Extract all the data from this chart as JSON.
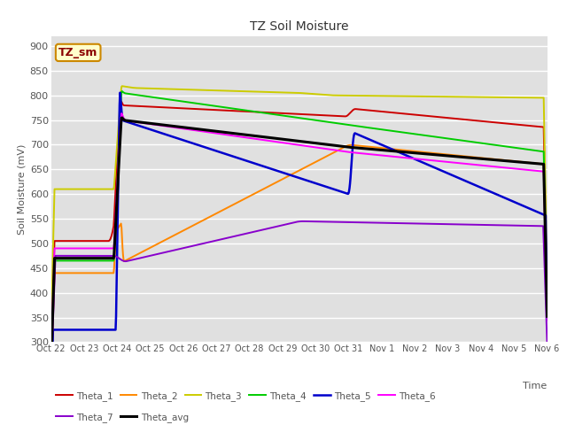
{
  "title": "TZ Soil Moisture",
  "xlabel": "Time",
  "ylabel": "Soil Moisture (mV)",
  "ylim": [
    300,
    920
  ],
  "yticks": [
    300,
    350,
    400,
    450,
    500,
    550,
    600,
    650,
    700,
    750,
    800,
    850,
    900
  ],
  "bg_color": "#e0e0e0",
  "fig_color": "#ffffff",
  "label_box": "TZ_sm",
  "series_colors": {
    "Theta_1": "#cc0000",
    "Theta_2": "#ff8800",
    "Theta_3": "#cccc00",
    "Theta_4": "#00cc00",
    "Theta_5": "#0000cc",
    "Theta_6": "#ff00ff",
    "Theta_7": "#8800cc",
    "Theta_avg": "#000000"
  },
  "xtick_labels": [
    "Oct 22",
    "Oct 23",
    "Oct 24",
    "Oct 25",
    "Oct 26",
    "Oct 27",
    "Oct 28",
    "Oct 29",
    "Oct 30",
    "Oct 31",
    "Nov 1",
    "Nov 2",
    "Nov 3",
    "Nov 4",
    "Nov 5",
    "Nov 6"
  ],
  "legend_row1": [
    "Theta_1",
    "Theta_2",
    "Theta_3",
    "Theta_4",
    "Theta_5",
    "Theta_6"
  ],
  "legend_row2": [
    "Theta_7",
    "Theta_avg"
  ]
}
